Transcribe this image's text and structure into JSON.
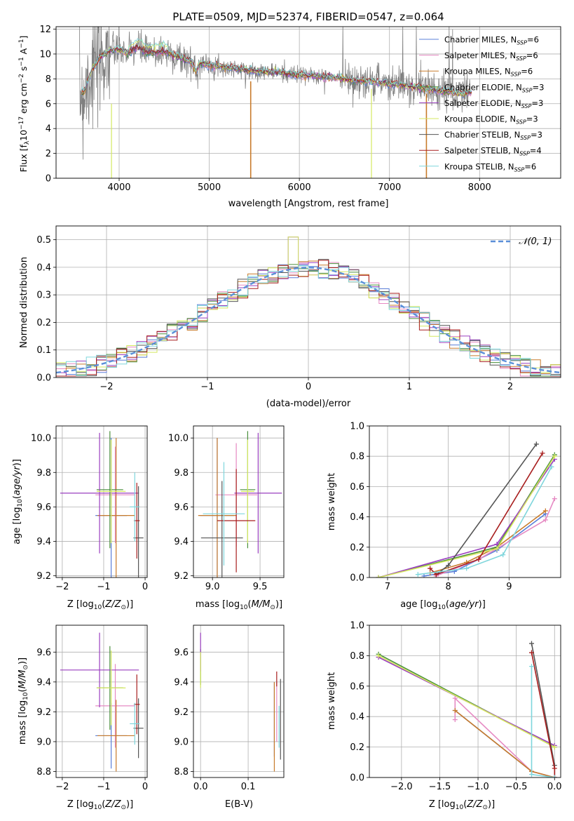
{
  "panels": {
    "spectrum_title": "PLATE=0509, MJD=52374, FIBERID=0547, z=0.064",
    "spectrum_xlabel": "wavelength [Angstrom, rest frame]",
    "spectrum_ylabel": "Flux [f$_\\lambda$10$^{-17}$ erg cm$^{-2}$ s$^{-1}$ A$^{-1}$]",
    "residual_xlabel": "(data-model)/error",
    "residual_ylabel": "Normed distribution",
    "residual_legend": "N(0, 1)",
    "ageZ_xlabel": "Z [log10(Z/Z⊙)]",
    "ageZ_ylabel": "age  [log10(age/yr)]",
    "agemass_xlabel": "mass [log10(M/M⊙)]",
    "cum_age_xlabel": "age  [log10(age/yr)]",
    "cum_ylabel": "mass weight",
    "massZ_xlabel": "Z [log10(Z/Z⊙)]",
    "massZ_ylabel": "mass [log10(M/M⊙)]",
    "ebv_xlabel": "E(B-V)",
    "cum_Z_xlabel": "Z [log10(Z/Z⊙)]"
  },
  "chart_data": [
    {
      "type": "line",
      "title": "PLATE=0509, MJD=52374, FIBERID=0547, z=0.064",
      "xlabel": "wavelength [Angstrom, rest frame]",
      "ylabel": "Flux [fλ10^-17 erg cm^-2 s^-1 A^-1]",
      "xlim": [
        3300,
        8900
      ],
      "ylim": [
        0,
        12.2
      ],
      "xticks": [
        4000,
        5000,
        6000,
        7000,
        8000
      ],
      "yticks": [
        0,
        2,
        4,
        6,
        8,
        10,
        12
      ],
      "data_continuum": {
        "x": [
          3560,
          3600,
          3700,
          3800,
          3900,
          4000,
          4100,
          4200,
          4300,
          4400,
          4500,
          4600,
          4700,
          4800,
          4850,
          4900,
          5000,
          5200,
          5400,
          5600,
          5800,
          6000,
          6200,
          6400,
          6600,
          6800,
          7000,
          7200,
          7400,
          7600,
          7800,
          7900
        ],
        "y": [
          7.1,
          6.8,
          8.8,
          9.8,
          10.3,
          10.3,
          10.0,
          10.6,
          10.1,
          10.1,
          10.2,
          9.9,
          9.6,
          9.4,
          8.6,
          9.3,
          9.1,
          8.9,
          8.7,
          8.6,
          8.5,
          8.3,
          8.2,
          8.1,
          7.9,
          7.8,
          7.6,
          7.4,
          7.2,
          7.0,
          6.8,
          6.9
        ]
      },
      "legend": [
        "Chabrier MILES, N_SSP=6",
        "Salpeter MILES, N_SSP=6",
        "Kroupa MILES, N_SSP=6",
        "Chabrier ELODIE, N_SSP=3",
        "Salpeter ELODIE, N_SSP=3",
        "Kroupa ELODIE, N_SSP=3",
        "Chabrier STELIB, N_SSP=3",
        "Salpeter STELIB, N_SSP=4",
        "Kroupa STELIB, N_SSP=6"
      ],
      "colors": [
        "#5b7fd8",
        "#e68ac3",
        "#c87b2b",
        "#4a8f3c",
        "#9a3fbf",
        "#d4e860",
        "#555555",
        "#a81e1e",
        "#7fd6dc"
      ]
    },
    {
      "type": "line",
      "xlabel": "(data-model)/error",
      "ylabel": "Normed distribution",
      "xlim": [
        -2.5,
        2.5
      ],
      "ylim": [
        0,
        0.55
      ],
      "xticks": [
        -2,
        -1,
        0,
        1,
        2
      ],
      "yticks": [
        0.0,
        0.1,
        0.2,
        0.3,
        0.4,
        0.5
      ],
      "legend_entry": "N(0, 1)",
      "histogram_bin_width": 0.1
    },
    {
      "type": "scatter",
      "xlabel": "Z [log10(Z/Z⊙)]",
      "ylabel": "age  [log10(age/yr)]",
      "xlim": [
        -2.15,
        0.05
      ],
      "ylim": [
        9.19,
        10.07
      ],
      "xticks": [
        -2,
        -1,
        0
      ],
      "yticks": [
        9.2,
        9.4,
        9.6,
        9.8,
        10.0
      ],
      "points": [
        {
          "color": "#5b7fd8",
          "x": -0.82,
          "y": 9.55,
          "xerr": 0.38,
          "yerr": 0.45
        },
        {
          "color": "#e68ac3",
          "x": -0.72,
          "y": 9.67,
          "xerr": 0.48,
          "yerr": 0.28
        },
        {
          "color": "#c87b2b",
          "x": -0.7,
          "y": 9.55,
          "xerr": 0.45,
          "yerr": 0.45
        },
        {
          "color": "#4a8f3c",
          "x": -0.85,
          "y": 9.7,
          "xerr": 0.32,
          "yerr": 0.34
        },
        {
          "color": "#9a3fbf",
          "x": -1.1,
          "y": 9.68,
          "xerr": 0.95,
          "yerr": 0.35
        },
        {
          "color": "#d4e860",
          "x": -0.82,
          "y": 9.69,
          "xerr": 0.35,
          "yerr": 0.3
        },
        {
          "color": "#555555",
          "x": -0.16,
          "y": 9.42,
          "xerr": 0.12,
          "yerr": 0.3
        },
        {
          "color": "#a81e1e",
          "x": -0.2,
          "y": 9.52,
          "xerr": 0.07,
          "yerr": 0.22
        },
        {
          "color": "#7fd6dc",
          "x": -0.25,
          "y": 9.6,
          "xerr": 0.12,
          "yerr": 0.2
        }
      ]
    },
    {
      "type": "scatter",
      "xlabel": "mass [log10(M/M⊙)]",
      "xlim": [
        8.8,
        9.75
      ],
      "ylim": [
        9.19,
        10.07
      ],
      "xticks": [
        9.0,
        9.5
      ],
      "yticks": [
        9.2,
        9.4,
        9.6,
        9.8,
        10.0
      ],
      "points": [
        {
          "color": "#5b7fd8",
          "x": 9.05,
          "y": 9.55,
          "xerr": 0.18,
          "yerr": 0.45
        },
        {
          "color": "#e68ac3",
          "x": 9.25,
          "y": 9.67,
          "xerr": 0.22,
          "yerr": 0.3
        },
        {
          "color": "#c87b2b",
          "x": 9.05,
          "y": 9.55,
          "xerr": 0.2,
          "yerr": 0.45
        },
        {
          "color": "#4a8f3c",
          "x": 9.37,
          "y": 9.7,
          "xerr": 0.08,
          "yerr": 0.34
        },
        {
          "color": "#9a3fbf",
          "x": 9.48,
          "y": 9.68,
          "xerr": 0.25,
          "yerr": 0.35
        },
        {
          "color": "#d4e860",
          "x": 9.37,
          "y": 9.69,
          "xerr": 0.07,
          "yerr": 0.3
        },
        {
          "color": "#555555",
          "x": 9.1,
          "y": 9.42,
          "xerr": 0.22,
          "yerr": 0.33
        },
        {
          "color": "#a81e1e",
          "x": 9.25,
          "y": 9.52,
          "xerr": 0.2,
          "yerr": 0.3
        },
        {
          "color": "#7fd6dc",
          "x": 9.12,
          "y": 9.56,
          "xerr": 0.22,
          "yerr": 0.3
        }
      ]
    },
    {
      "type": "line",
      "xlabel": "age  [log10(age/yr)]",
      "ylabel": "mass weight",
      "xlim": [
        6.7,
        9.85
      ],
      "ylim": [
        0,
        1.0
      ],
      "xticks": [
        7,
        8,
        9
      ],
      "yticks": [
        0.0,
        0.2,
        0.4,
        0.6,
        0.8,
        1.0
      ],
      "series": [
        {
          "color": "#5b7fd8",
          "x": [
            7.6,
            8.1,
            8.8,
            9.6
          ],
          "y": [
            0.01,
            0.04,
            0.18,
            0.42
          ]
        },
        {
          "color": "#e68ac3",
          "x": [
            7.8,
            8.5,
            9.6,
            9.75
          ],
          "y": [
            0.01,
            0.12,
            0.38,
            0.52
          ]
        },
        {
          "color": "#c87b2b",
          "x": [
            7.7,
            8.3,
            8.8,
            9.6
          ],
          "y": [
            0.03,
            0.1,
            0.2,
            0.44
          ]
        },
        {
          "color": "#4a8f3c",
          "x": [
            6.85,
            8.8,
            9.75
          ],
          "y": [
            0.0,
            0.2,
            0.81
          ]
        },
        {
          "color": "#9a3fbf",
          "x": [
            6.85,
            8.8,
            9.75
          ],
          "y": [
            0.0,
            0.22,
            0.78
          ]
        },
        {
          "color": "#d4e860",
          "x": [
            6.85,
            8.8,
            9.75
          ],
          "y": [
            0.0,
            0.19,
            0.8
          ]
        },
        {
          "color": "#555555",
          "x": [
            7.8,
            8.0,
            9.45
          ],
          "y": [
            0.02,
            0.08,
            0.88
          ]
        },
        {
          "color": "#a81e1e",
          "x": [
            7.7,
            7.8,
            8.5,
            9.55
          ],
          "y": [
            0.06,
            0.02,
            0.12,
            0.82
          ]
        },
        {
          "color": "#7fd6dc",
          "x": [
            7.5,
            8.3,
            8.9,
            9.7
          ],
          "y": [
            0.02,
            0.06,
            0.15,
            0.73
          ]
        }
      ]
    },
    {
      "type": "scatter",
      "xlabel": "Z [log10(Z/Z⊙)]",
      "ylabel": "mass [log10(M/M⊙)]",
      "xlim": [
        -2.15,
        0.05
      ],
      "ylim": [
        8.76,
        9.78
      ],
      "xticks": [
        -2,
        -1,
        0
      ],
      "yticks": [
        8.8,
        9.0,
        9.2,
        9.4,
        9.6
      ],
      "points": [
        {
          "color": "#5b7fd8",
          "x": -0.82,
          "y": 9.04,
          "xerr": 0.38,
          "yerr": 0.22
        },
        {
          "color": "#e68ac3",
          "x": -0.72,
          "y": 9.24,
          "xerr": 0.48,
          "yerr": 0.28
        },
        {
          "color": "#c87b2b",
          "x": -0.7,
          "y": 9.04,
          "xerr": 0.45,
          "yerr": 0.24
        },
        {
          "color": "#4a8f3c",
          "x": -0.85,
          "y": 9.36,
          "xerr": 0.32,
          "yerr": 0.28
        },
        {
          "color": "#9a3fbf",
          "x": -1.1,
          "y": 9.48,
          "xerr": 0.95,
          "yerr": 0.25
        },
        {
          "color": "#d4e860",
          "x": -0.82,
          "y": 9.36,
          "xerr": 0.35,
          "yerr": 0.25
        },
        {
          "color": "#555555",
          "x": -0.16,
          "y": 9.09,
          "xerr": 0.12,
          "yerr": 0.2
        },
        {
          "color": "#a81e1e",
          "x": -0.2,
          "y": 9.25,
          "xerr": 0.07,
          "yerr": 0.2
        },
        {
          "color": "#7fd6dc",
          "x": -0.25,
          "y": 9.12,
          "xerr": 0.12,
          "yerr": 0.14
        }
      ]
    },
    {
      "type": "scatter",
      "xlabel": "E(B-V)",
      "xlim": [
        -0.015,
        0.175
      ],
      "ylim": [
        8.76,
        9.78
      ],
      "xticks": [
        0.0,
        0.1
      ],
      "yticks": [
        8.8,
        9.0,
        9.2,
        9.4,
        9.6
      ],
      "points": [
        {
          "color": "#5b7fd8",
          "x": 0.155,
          "y": 9.15,
          "yerr": 0.25
        },
        {
          "color": "#e68ac3",
          "x": 0.16,
          "y": 9.2,
          "yerr": 0.2
        },
        {
          "color": "#c87b2b",
          "x": 0.155,
          "y": 9.1,
          "yerr": 0.3
        },
        {
          "color": "#4a8f3c",
          "x": 0.0,
          "y": 9.5,
          "yerr": 0.12
        },
        {
          "color": "#9a3fbf",
          "x": 0.0,
          "y": 9.6,
          "yerr": 0.13
        },
        {
          "color": "#d4e860",
          "x": 0.0,
          "y": 9.48,
          "yerr": 0.12
        },
        {
          "color": "#555555",
          "x": 0.168,
          "y": 9.15,
          "yerr": 0.27
        },
        {
          "color": "#a81e1e",
          "x": 0.16,
          "y": 9.42,
          "yerr": 0.05
        },
        {
          "color": "#7fd6dc",
          "x": 0.165,
          "y": 9.1,
          "yerr": 0.14
        }
      ]
    },
    {
      "type": "line",
      "xlabel": "Z [log10(Z/Z⊙)]",
      "ylabel": "mass weight",
      "xlim": [
        -2.42,
        0.08
      ],
      "ylim": [
        0,
        1.0
      ],
      "xticks": [
        -2.0,
        -1.5,
        -1.0,
        -0.5,
        0.0
      ],
      "yticks": [
        0.0,
        0.2,
        0.4,
        0.6,
        0.8,
        1.0
      ],
      "series": [
        {
          "color": "#5b7fd8",
          "x": [
            -1.3,
            -0.3,
            0.0
          ],
          "y": [
            0.44,
            0.04,
            0.0
          ]
        },
        {
          "color": "#e68ac3",
          "x": [
            -1.3,
            -1.3,
            -0.3,
            0.0
          ],
          "y": [
            0.38,
            0.52,
            0.04,
            0.0
          ]
        },
        {
          "color": "#c87b2b",
          "x": [
            -1.3,
            -0.3,
            0.0
          ],
          "y": [
            0.44,
            0.04,
            0.0
          ]
        },
        {
          "color": "#4a8f3c",
          "x": [
            -2.3,
            0.0
          ],
          "y": [
            0.81,
            0.2
          ]
        },
        {
          "color": "#9a3fbf",
          "x": [
            -2.3,
            0.0
          ],
          "y": [
            0.79,
            0.21
          ]
        },
        {
          "color": "#d4e860",
          "x": [
            -2.3,
            0.0
          ],
          "y": [
            0.8,
            0.2
          ]
        },
        {
          "color": "#555555",
          "x": [
            -0.3,
            0.0,
            0.0
          ],
          "y": [
            0.88,
            0.08,
            0.0
          ]
        },
        {
          "color": "#a81e1e",
          "x": [
            -0.3,
            0.0,
            0.0
          ],
          "y": [
            0.82,
            0.06,
            0.0
          ]
        },
        {
          "color": "#7fd6dc",
          "x": [
            -0.3,
            -0.3,
            0.0
          ],
          "y": [
            0.73,
            0.02,
            0.0
          ]
        }
      ]
    }
  ]
}
